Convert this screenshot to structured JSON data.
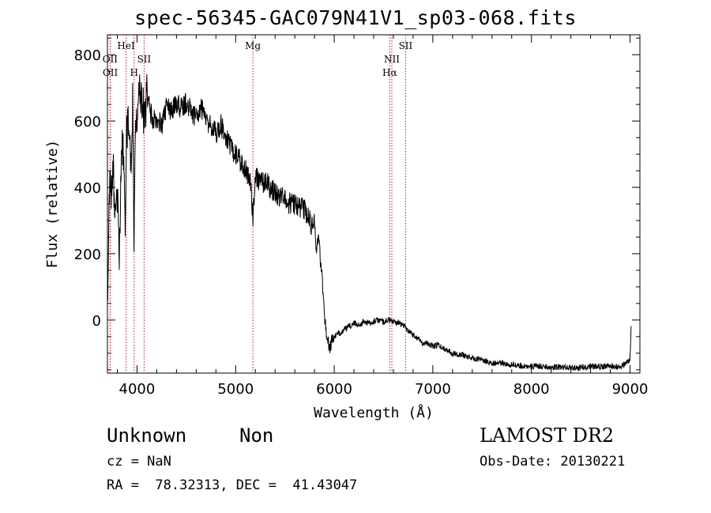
{
  "header": {
    "title": "spec-56345-GAC079N41V1_sp03-068.fits"
  },
  "footer": {
    "class": "Unknown",
    "subclass": "Non",
    "survey": "LAMOST DR2",
    "cz": "cz = NaN",
    "obs_date": "Obs-Date: 20130221",
    "ra_dec": "RA =  78.32313, DEC =  41.43047"
  },
  "chart_data": {
    "type": "line",
    "title": "spec-56345-GAC079N41V1_sp03-068.fits",
    "xlabel": "Wavelength (Å)",
    "ylabel": "Flux (relative)",
    "xlim": [
      3700,
      9100
    ],
    "ylim": [
      -160,
      860
    ],
    "xticks": [
      4000,
      5000,
      6000,
      7000,
      8000,
      9000
    ],
    "yticks": [
      0,
      200,
      400,
      600,
      800
    ],
    "x_tick_labels": [
      "4000",
      "5000",
      "6000",
      "7000",
      "8000",
      "9000"
    ],
    "y_tick_labels": [
      "0",
      "200",
      "400",
      "600",
      "800"
    ],
    "grid": false,
    "line_color": "#000000",
    "marker_color": "#b22222",
    "lines": [
      {
        "label": "OII",
        "wavelength": 3727,
        "row": 1
      },
      {
        "label": "OII",
        "wavelength": 3729,
        "row": 2
      },
      {
        "label": "HeI",
        "wavelength": 3889,
        "row": 0
      },
      {
        "label": "H",
        "wavelength": 3970,
        "row": 2
      },
      {
        "label": "SII",
        "wavelength": 4072,
        "row": 1
      },
      {
        "label": "Mg",
        "wavelength": 5175,
        "row": 0
      },
      {
        "label": "NII",
        "wavelength": 6584,
        "row": 1
      },
      {
        "label": "Hα",
        "wavelength": 6563,
        "row": 2
      },
      {
        "label": "SII",
        "wavelength": 6724,
        "row": 0
      }
    ],
    "spectrum": {
      "x": [
        3700,
        3715,
        3730,
        3745,
        3760,
        3775,
        3790,
        3805,
        3820,
        3835,
        3850,
        3865,
        3880,
        3895,
        3910,
        3925,
        3940,
        3955,
        3970,
        3985,
        4000,
        4020,
        4040,
        4060,
        4080,
        4100,
        4150,
        4200,
        4250,
        4300,
        4350,
        4400,
        4450,
        4500,
        4550,
        4600,
        4650,
        4700,
        4750,
        4800,
        4850,
        4900,
        4950,
        5000,
        5050,
        5100,
        5150,
        5175,
        5200,
        5250,
        5300,
        5350,
        5400,
        5450,
        5500,
        5550,
        5600,
        5650,
        5700,
        5750,
        5780,
        5800,
        5820,
        5840,
        5860,
        5880,
        5900,
        5920,
        5940,
        5960,
        5980,
        6000,
        6050,
        6100,
        6150,
        6200,
        6250,
        6300,
        6350,
        6400,
        6450,
        6500,
        6550,
        6600,
        6650,
        6700,
        6750,
        6800,
        6850,
        6900,
        6950,
        7000,
        7050,
        7100,
        7150,
        7200,
        7300,
        7400,
        7500,
        7600,
        7700,
        7800,
        7900,
        8000,
        8100,
        8200,
        8300,
        8400,
        8500,
        8600,
        8700,
        8800,
        8900,
        8950,
        9000,
        9010
      ],
      "y": [
        60,
        320,
        430,
        380,
        470,
        300,
        420,
        340,
        220,
        400,
        520,
        480,
        300,
        560,
        630,
        540,
        420,
        650,
        220,
        580,
        620,
        710,
        660,
        640,
        600,
        680,
        610,
        600,
        590,
        640,
        630,
        650,
        640,
        655,
        630,
        610,
        640,
        600,
        590,
        560,
        590,
        550,
        520,
        500,
        480,
        450,
        430,
        310,
        440,
        410,
        420,
        400,
        380,
        370,
        360,
        350,
        350,
        340,
        330,
        300,
        280,
        310,
        200,
        260,
        180,
        120,
        20,
        -40,
        -70,
        -80,
        -60,
        -50,
        -40,
        -30,
        -20,
        -10,
        -15,
        -5,
        -10,
        -5,
        0,
        -5,
        0,
        -5,
        -10,
        -15,
        -30,
        -45,
        -55,
        -70,
        -70,
        -80,
        -75,
        -85,
        -90,
        -100,
        -105,
        -115,
        -120,
        -130,
        -130,
        -135,
        -138,
        -140,
        -140,
        -142,
        -142,
        -145,
        -143,
        -140,
        -140,
        -138,
        -142,
        -130,
        -120,
        -20
      ]
    }
  }
}
